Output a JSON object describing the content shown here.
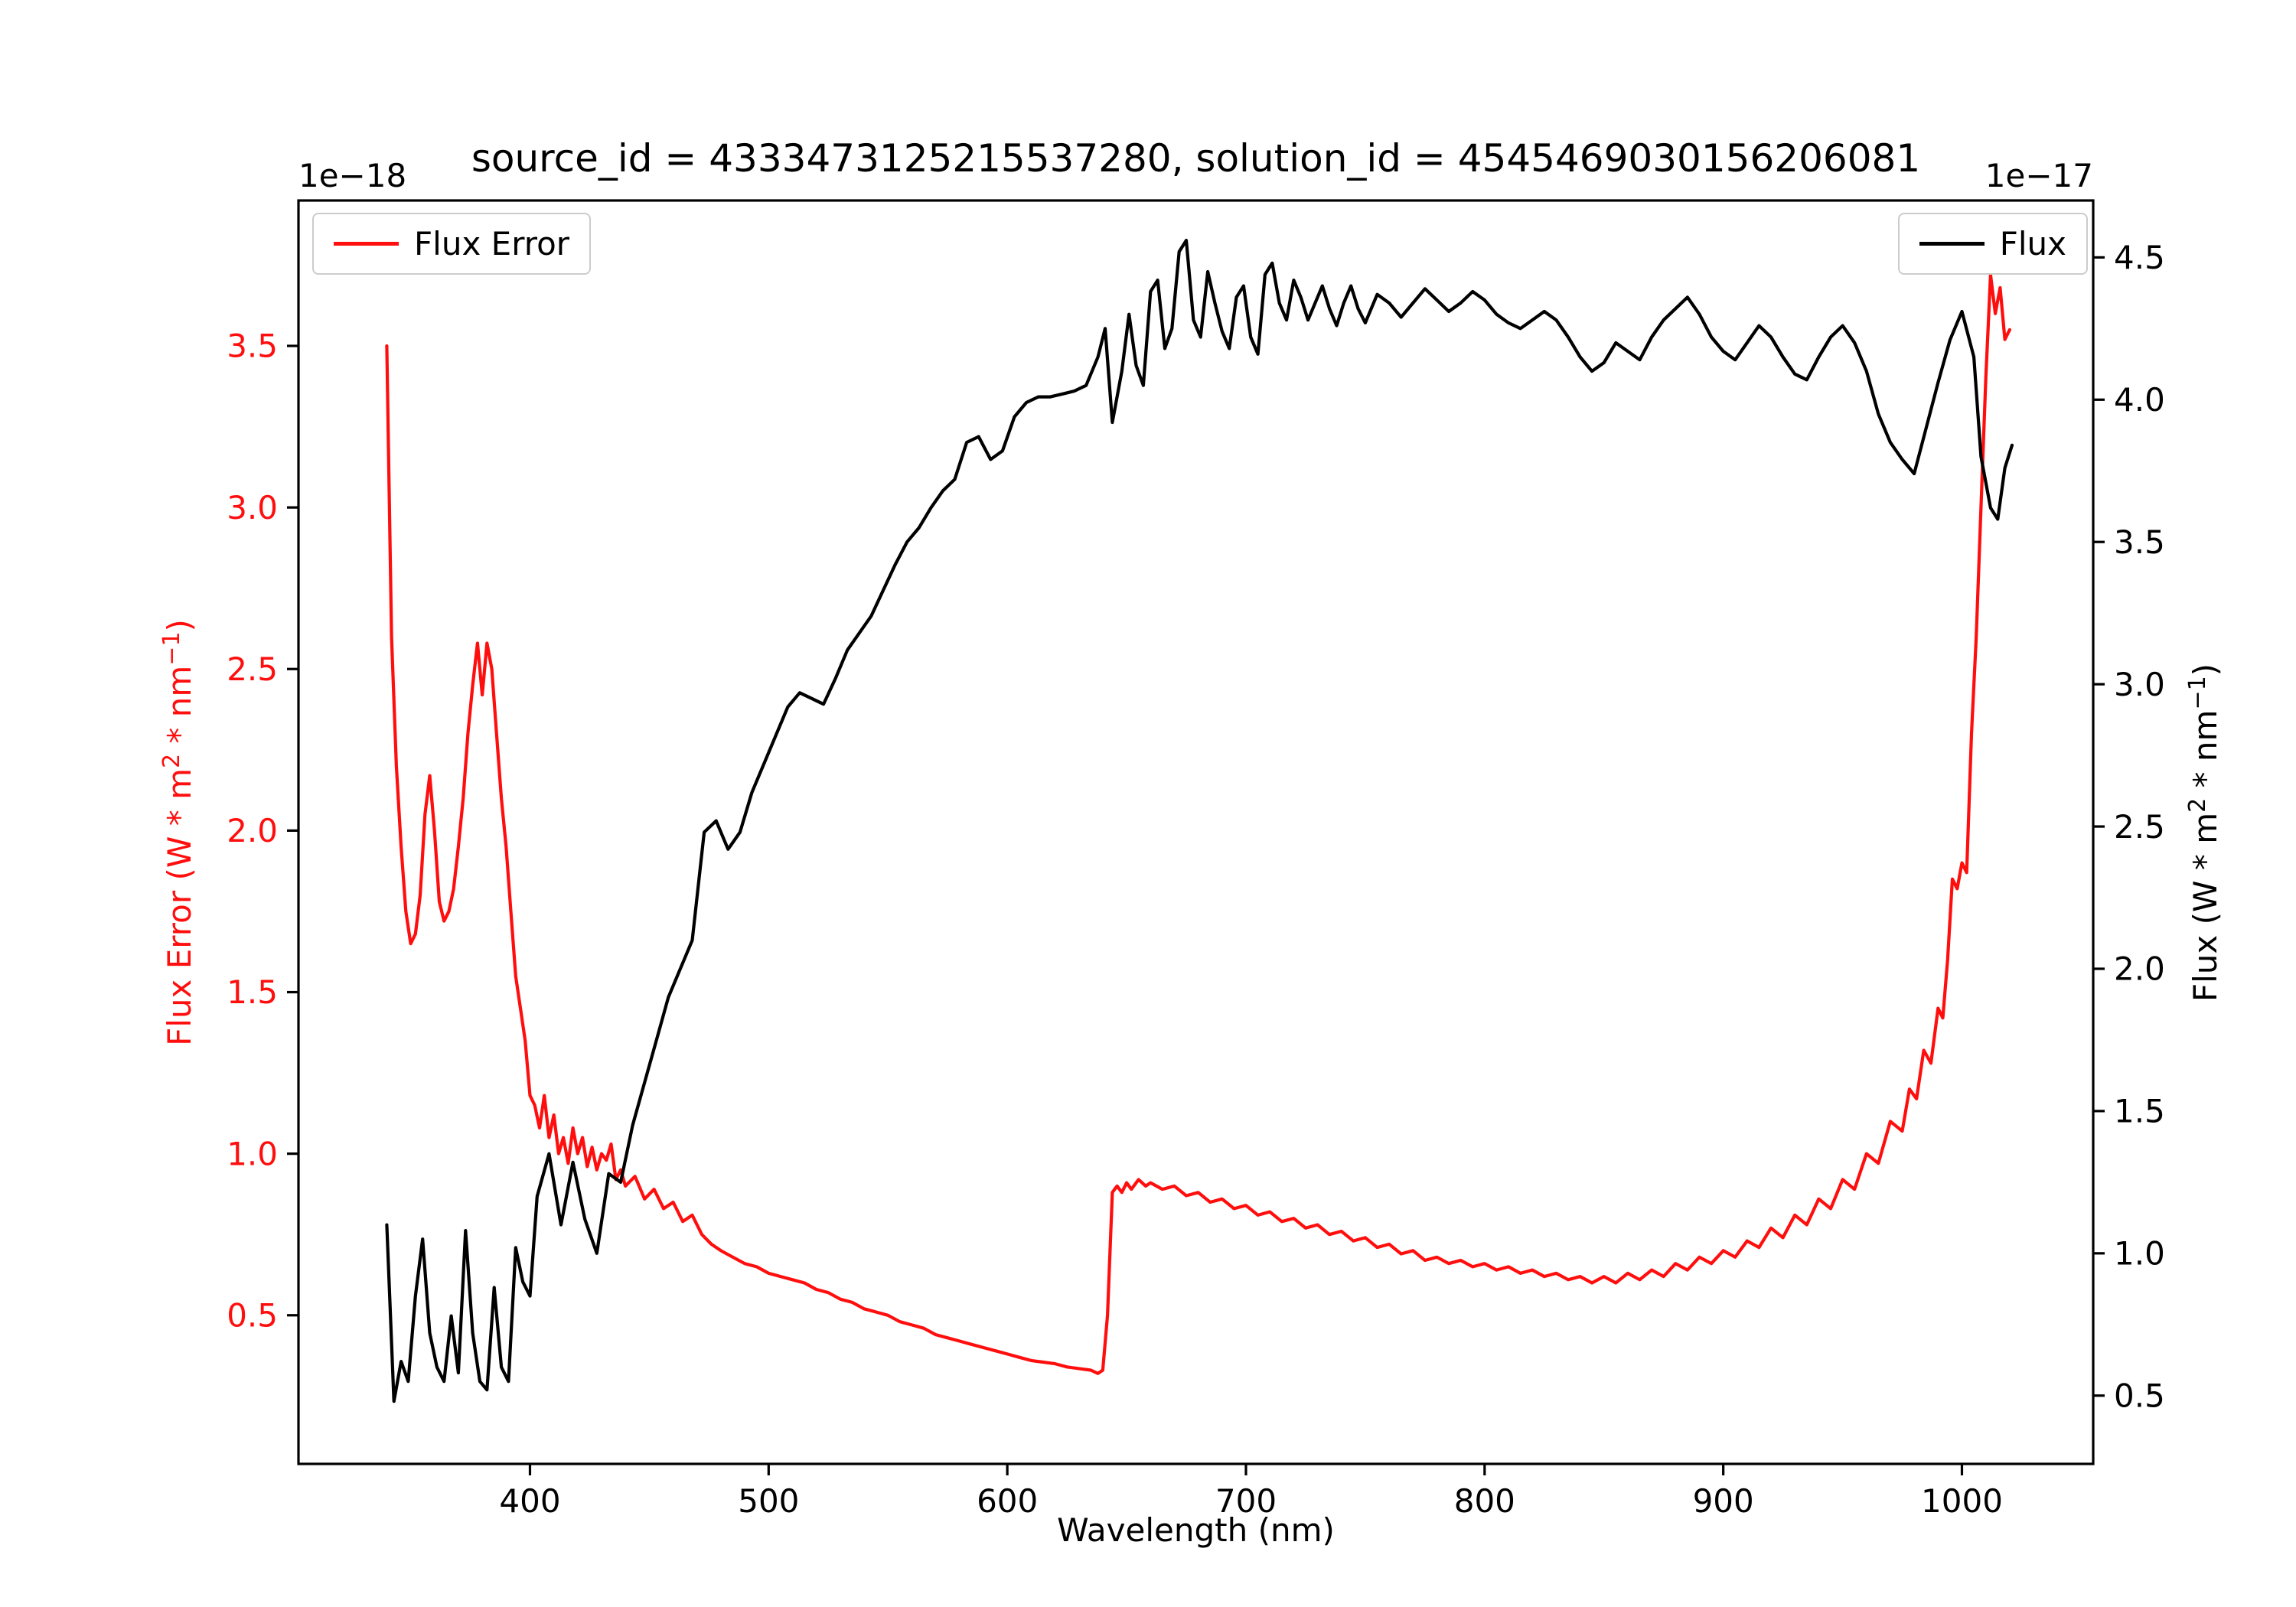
{
  "title": "source_id = 4333473125215537280, solution_id = 4545469030156206081",
  "offsets": {
    "left": "1e−18",
    "right": "1e−17"
  },
  "xlabel": "Wavelength (nm)",
  "labels": {
    "left": {
      "pre": "Flux Error (W * m",
      "sup1": "2",
      "mid": " * nm",
      "sup2": "−1",
      "post": ")"
    },
    "right": {
      "pre": "Flux (W * m",
      "sup1": "2",
      "mid": " * nm",
      "sup2": "−1",
      "post": ")"
    }
  },
  "legend": {
    "flux_error": "Flux Error",
    "flux": "Flux"
  },
  "colors": {
    "flux_error": "#ff0e0e",
    "flux": "#000000"
  },
  "chart_data": {
    "type": "line",
    "title": "source_id = 4333473125215537280, solution_id = 4545469030156206081",
    "xlabel": "Wavelength (nm)",
    "x_range": [
      303,
      1055
    ],
    "xticks": [
      400,
      500,
      600,
      700,
      800,
      900,
      1000
    ],
    "grid": false,
    "y_left": {
      "label": "Flux Error (W * m^2 * nm^-1)",
      "scale_factor": "1e-18",
      "range": [
        0.04,
        3.95
      ],
      "ticks": [
        0.5,
        1.0,
        1.5,
        2.0,
        2.5,
        3.0,
        3.5
      ],
      "color": "#ff0e0e",
      "legend": "Flux Error",
      "legend_position": "upper left"
    },
    "y_right": {
      "label": "Flux (W * m^2 * nm^-1)",
      "scale_factor": "1e-17",
      "range": [
        0.26,
        4.7
      ],
      "ticks": [
        0.5,
        1.0,
        1.5,
        2.0,
        2.5,
        3.0,
        3.5,
        4.0,
        4.5
      ],
      "color": "#000000",
      "legend": "Flux",
      "legend_position": "upper right"
    },
    "series": [
      {
        "name": "Flux Error",
        "axis": "left",
        "color": "#ff0e0e",
        "x": [
          340,
          342,
          344,
          346,
          348,
          350,
          352,
          354,
          356,
          358,
          360,
          362,
          364,
          366,
          368,
          370,
          372,
          374,
          376,
          378,
          380,
          382,
          384,
          386,
          388,
          390,
          392,
          394,
          396,
          398,
          400,
          402,
          404,
          406,
          408,
          410,
          412,
          414,
          416,
          418,
          420,
          422,
          424,
          426,
          428,
          430,
          432,
          434,
          436,
          438,
          440,
          444,
          448,
          452,
          456,
          460,
          464,
          468,
          472,
          476,
          480,
          485,
          490,
          495,
          500,
          505,
          510,
          515,
          520,
          525,
          530,
          535,
          540,
          545,
          550,
          555,
          560,
          565,
          570,
          575,
          580,
          585,
          590,
          595,
          600,
          605,
          610,
          615,
          620,
          625,
          630,
          635,
          638,
          640,
          642,
          644,
          646,
          648,
          650,
          652,
          655,
          658,
          660,
          665,
          670,
          675,
          680,
          685,
          690,
          695,
          700,
          705,
          710,
          715,
          720,
          725,
          730,
          735,
          740,
          745,
          750,
          755,
          760,
          765,
          770,
          775,
          780,
          785,
          790,
          795,
          800,
          805,
          810,
          815,
          820,
          825,
          830,
          835,
          840,
          845,
          850,
          855,
          860,
          865,
          870,
          875,
          880,
          885,
          890,
          895,
          900,
          905,
          910,
          915,
          920,
          925,
          930,
          935,
          940,
          945,
          950,
          955,
          960,
          965,
          970,
          975,
          978,
          981,
          984,
          987,
          990,
          992,
          994,
          996,
          998,
          1000,
          1002,
          1004,
          1006,
          1008,
          1010,
          1012,
          1014,
          1016,
          1018,
          1020
        ],
        "y": [
          3.5,
          2.6,
          2.2,
          1.95,
          1.75,
          1.65,
          1.68,
          1.8,
          2.05,
          2.17,
          2.0,
          1.78,
          1.72,
          1.75,
          1.82,
          1.95,
          2.1,
          2.3,
          2.45,
          2.58,
          2.42,
          2.58,
          2.5,
          2.3,
          2.1,
          1.95,
          1.75,
          1.55,
          1.45,
          1.35,
          1.18,
          1.15,
          1.08,
          1.18,
          1.05,
          1.12,
          1.0,
          1.05,
          0.97,
          1.08,
          1.0,
          1.05,
          0.96,
          1.02,
          0.95,
          1.0,
          0.98,
          1.03,
          0.92,
          0.95,
          0.9,
          0.93,
          0.86,
          0.89,
          0.83,
          0.85,
          0.79,
          0.81,
          0.75,
          0.72,
          0.7,
          0.68,
          0.66,
          0.65,
          0.63,
          0.62,
          0.61,
          0.6,
          0.58,
          0.57,
          0.55,
          0.54,
          0.52,
          0.51,
          0.5,
          0.48,
          0.47,
          0.46,
          0.44,
          0.43,
          0.42,
          0.41,
          0.4,
          0.39,
          0.38,
          0.37,
          0.36,
          0.355,
          0.35,
          0.34,
          0.335,
          0.33,
          0.32,
          0.33,
          0.5,
          0.88,
          0.9,
          0.88,
          0.91,
          0.89,
          0.92,
          0.9,
          0.91,
          0.89,
          0.9,
          0.87,
          0.88,
          0.85,
          0.86,
          0.83,
          0.84,
          0.81,
          0.82,
          0.79,
          0.8,
          0.77,
          0.78,
          0.75,
          0.76,
          0.73,
          0.74,
          0.71,
          0.72,
          0.69,
          0.7,
          0.67,
          0.68,
          0.66,
          0.67,
          0.65,
          0.66,
          0.64,
          0.65,
          0.63,
          0.64,
          0.62,
          0.63,
          0.61,
          0.62,
          0.6,
          0.62,
          0.6,
          0.63,
          0.61,
          0.64,
          0.62,
          0.66,
          0.64,
          0.68,
          0.66,
          0.7,
          0.68,
          0.73,
          0.71,
          0.77,
          0.74,
          0.81,
          0.78,
          0.86,
          0.83,
          0.92,
          0.89,
          1.0,
          0.97,
          1.1,
          1.07,
          1.2,
          1.17,
          1.32,
          1.28,
          1.45,
          1.42,
          1.6,
          1.85,
          1.82,
          1.9,
          1.87,
          2.3,
          2.6,
          3.0,
          3.4,
          3.72,
          3.6,
          3.68,
          3.52,
          3.55
        ]
      },
      {
        "name": "Flux",
        "axis": "right",
        "color": "#000000",
        "x": [
          340,
          343,
          346,
          349,
          352,
          355,
          358,
          361,
          364,
          367,
          370,
          373,
          376,
          379,
          382,
          385,
          388,
          391,
          394,
          397,
          400,
          403,
          408,
          413,
          418,
          423,
          428,
          433,
          438,
          443,
          448,
          453,
          458,
          463,
          468,
          473,
          478,
          483,
          488,
          493,
          498,
          503,
          508,
          513,
          518,
          523,
          528,
          533,
          538,
          543,
          548,
          553,
          558,
          563,
          568,
          573,
          578,
          583,
          588,
          593,
          598,
          603,
          608,
          613,
          618,
          623,
          628,
          633,
          638,
          641,
          644,
          648,
          651,
          654,
          657,
          660,
          663,
          666,
          669,
          672,
          675,
          678,
          681,
          684,
          687,
          690,
          693,
          696,
          699,
          702,
          705,
          708,
          711,
          714,
          717,
          720,
          723,
          726,
          729,
          732,
          735,
          738,
          741,
          744,
          747,
          750,
          755,
          760,
          765,
          770,
          775,
          780,
          785,
          790,
          795,
          800,
          805,
          810,
          815,
          820,
          825,
          830,
          835,
          840,
          845,
          850,
          855,
          860,
          865,
          870,
          875,
          880,
          885,
          890,
          895,
          900,
          905,
          910,
          915,
          920,
          925,
          930,
          935,
          940,
          945,
          950,
          955,
          960,
          965,
          970,
          975,
          980,
          985,
          990,
          995,
          1000,
          1005,
          1008,
          1012,
          1015,
          1018,
          1021
        ],
        "y": [
          1.1,
          0.48,
          0.62,
          0.55,
          0.85,
          1.05,
          0.72,
          0.6,
          0.55,
          0.78,
          0.58,
          1.08,
          0.72,
          0.55,
          0.52,
          0.88,
          0.6,
          0.55,
          1.02,
          0.9,
          0.85,
          1.2,
          1.35,
          1.1,
          1.32,
          1.12,
          1.0,
          1.28,
          1.25,
          1.45,
          1.6,
          1.75,
          1.9,
          2.0,
          2.1,
          2.48,
          2.52,
          2.42,
          2.48,
          2.62,
          2.72,
          2.82,
          2.92,
          2.97,
          2.95,
          2.93,
          3.02,
          3.12,
          3.18,
          3.24,
          3.33,
          3.42,
          3.5,
          3.55,
          3.62,
          3.68,
          3.72,
          3.85,
          3.87,
          3.79,
          3.82,
          3.94,
          3.99,
          4.01,
          4.01,
          4.02,
          4.03,
          4.05,
          4.15,
          4.25,
          3.92,
          4.1,
          4.3,
          4.12,
          4.05,
          4.38,
          4.42,
          4.18,
          4.25,
          4.52,
          4.56,
          4.28,
          4.22,
          4.45,
          4.34,
          4.24,
          4.18,
          4.36,
          4.4,
          4.22,
          4.16,
          4.44,
          4.48,
          4.34,
          4.28,
          4.42,
          4.36,
          4.28,
          4.34,
          4.4,
          4.32,
          4.26,
          4.34,
          4.4,
          4.32,
          4.27,
          4.37,
          4.34,
          4.29,
          4.34,
          4.39,
          4.35,
          4.31,
          4.34,
          4.38,
          4.35,
          4.3,
          4.27,
          4.25,
          4.28,
          4.31,
          4.28,
          4.22,
          4.15,
          4.1,
          4.13,
          4.2,
          4.17,
          4.14,
          4.22,
          4.28,
          4.32,
          4.36,
          4.3,
          4.22,
          4.17,
          4.14,
          4.2,
          4.26,
          4.22,
          4.15,
          4.09,
          4.07,
          4.15,
          4.22,
          4.26,
          4.2,
          4.1,
          3.95,
          3.85,
          3.79,
          3.74,
          3.9,
          4.06,
          4.21,
          4.31,
          4.15,
          3.8,
          3.62,
          3.58,
          3.76,
          3.84
        ]
      }
    ]
  }
}
